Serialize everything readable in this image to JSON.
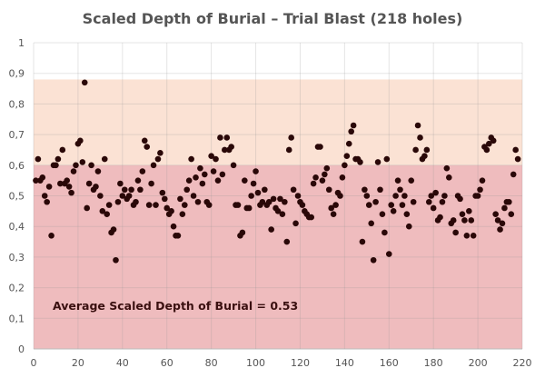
{
  "chart_data": {
    "type": "scatter",
    "title": "Scaled Depth of Burial – Trial Blast (218 holes)",
    "xlabel": "",
    "ylabel": "",
    "xlim": [
      0,
      220
    ],
    "ylim": [
      0,
      1
    ],
    "x_ticks": [
      "0",
      "20",
      "40",
      "60",
      "80",
      "100",
      "120",
      "140",
      "160",
      "180",
      "200",
      "220"
    ],
    "y_ticks": [
      "0",
      "0,1",
      "0,2",
      "0,3",
      "0,4",
      "0,5",
      "0,6",
      "0,7",
      "0,8",
      "0,9",
      "1"
    ],
    "grid": true,
    "bands": [
      {
        "from": 0,
        "to": 0.6,
        "color": "#efbcbe"
      },
      {
        "from": 0.6,
        "to": 0.88,
        "color": "#fbe2d4"
      }
    ],
    "point_color": "#2a0808",
    "annotation": "Average Scaled Depth of Burial = 0.53",
    "values": [
      0.55,
      0.62,
      0.55,
      0.56,
      0.5,
      0.48,
      0.53,
      0.37,
      0.6,
      0.6,
      0.62,
      0.54,
      0.65,
      0.54,
      0.55,
      0.53,
      0.51,
      0.58,
      0.6,
      0.67,
      0.68,
      0.61,
      0.87,
      0.46,
      0.54,
      0.6,
      0.52,
      0.53,
      0.58,
      0.5,
      0.45,
      0.62,
      0.44,
      0.47,
      0.38,
      0.39,
      0.29,
      0.48,
      0.54,
      0.5,
      0.52,
      0.49,
      0.5,
      0.52,
      0.47,
      0.48,
      0.55,
      0.52,
      0.58,
      0.68,
      0.66,
      0.47,
      0.54,
      0.6,
      0.47,
      0.62,
      0.64,
      0.51,
      0.49,
      0.46,
      0.44,
      0.45,
      0.4,
      0.37,
      0.37,
      0.49,
      0.44,
      0.47,
      0.52,
      0.55,
      0.62,
      0.5,
      0.56,
      0.48,
      0.59,
      0.54,
      0.57,
      0.48,
      0.47,
      0.63,
      0.58,
      0.62,
      0.55,
      0.69,
      0.57,
      0.65,
      0.69,
      0.65,
      0.66,
      0.6,
      0.47,
      0.47,
      0.37,
      0.38,
      0.55,
      0.46,
      0.46,
      0.5,
      0.54,
      0.58,
      0.51,
      0.47,
      0.48,
      0.52,
      0.47,
      0.48,
      0.39,
      0.49,
      0.46,
      0.45,
      0.49,
      0.44,
      0.48,
      0.35,
      0.65,
      0.69,
      0.52,
      0.41,
      0.5,
      0.48,
      0.47,
      0.45,
      0.44,
      0.43,
      0.43,
      0.54,
      0.56,
      0.66,
      0.66,
      0.55,
      0.57,
      0.59,
      0.52,
      0.46,
      0.44,
      0.47,
      0.51,
      0.5,
      0.56,
      0.6,
      0.63,
      0.67,
      0.71,
      0.73,
      0.62,
      0.62,
      0.61,
      0.35,
      0.52,
      0.5,
      0.47,
      0.41,
      0.29,
      0.48,
      0.61,
      0.52,
      0.44,
      0.38,
      0.62,
      0.31,
      0.47,
      0.45,
      0.5,
      0.55,
      0.52,
      0.47,
      0.5,
      0.44,
      0.4,
      0.55,
      0.48,
      0.65,
      0.73,
      0.69,
      0.62,
      0.63,
      0.65,
      0.48,
      0.5,
      0.46,
      0.51,
      0.42,
      0.43,
      0.48,
      0.5,
      0.59,
      0.56,
      0.41,
      0.42,
      0.38,
      0.5,
      0.49,
      0.44,
      0.42,
      0.37,
      0.45,
      0.42,
      0.37,
      0.5,
      0.5,
      0.52,
      0.55,
      0.66,
      0.65,
      0.67,
      0.69,
      0.68,
      0.44,
      0.42,
      0.39,
      0.41,
      0.46,
      0.48,
      0.48,
      0.44,
      0.57,
      0.65,
      0.62
    ]
  }
}
